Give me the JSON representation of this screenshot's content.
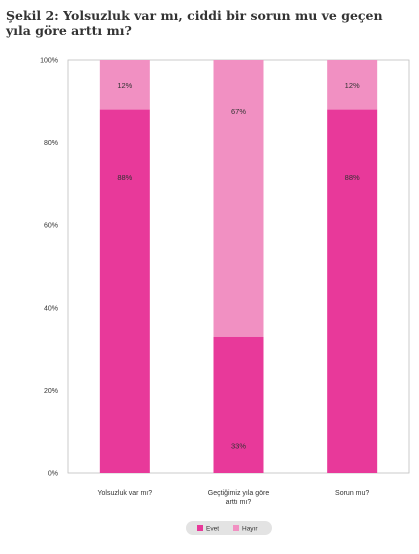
{
  "figure": {
    "title": "Şekil 2: Yolsuzluk var mı, ciddi bir sorun mu ve geçen yıla göre arttı mı?"
  },
  "chart_data": {
    "type": "bar",
    "stacked": true,
    "categories": [
      "Yolsuzluk var mı?",
      "Geçtiğimiz yıla göre arttı mı?",
      "Sorun mu?"
    ],
    "series": [
      {
        "name": "Evet",
        "values": [
          88,
          33,
          88
        ],
        "labels": [
          "88%",
          "33%",
          "88%"
        ],
        "color": "#e8399a"
      },
      {
        "name": "Hayır",
        "values": [
          12,
          67,
          12
        ],
        "labels": [
          "12%",
          "67%",
          "12%"
        ],
        "color": "#f190c2"
      }
    ],
    "yticks": [
      "0%",
      "20%",
      "40%",
      "60%",
      "80%",
      "100%"
    ],
    "ylim": [
      0,
      100
    ],
    "grid": false,
    "legend_position": "bottom-center",
    "legend_bg": "#e3e3e3",
    "frame_color": "#bfbfbf"
  }
}
